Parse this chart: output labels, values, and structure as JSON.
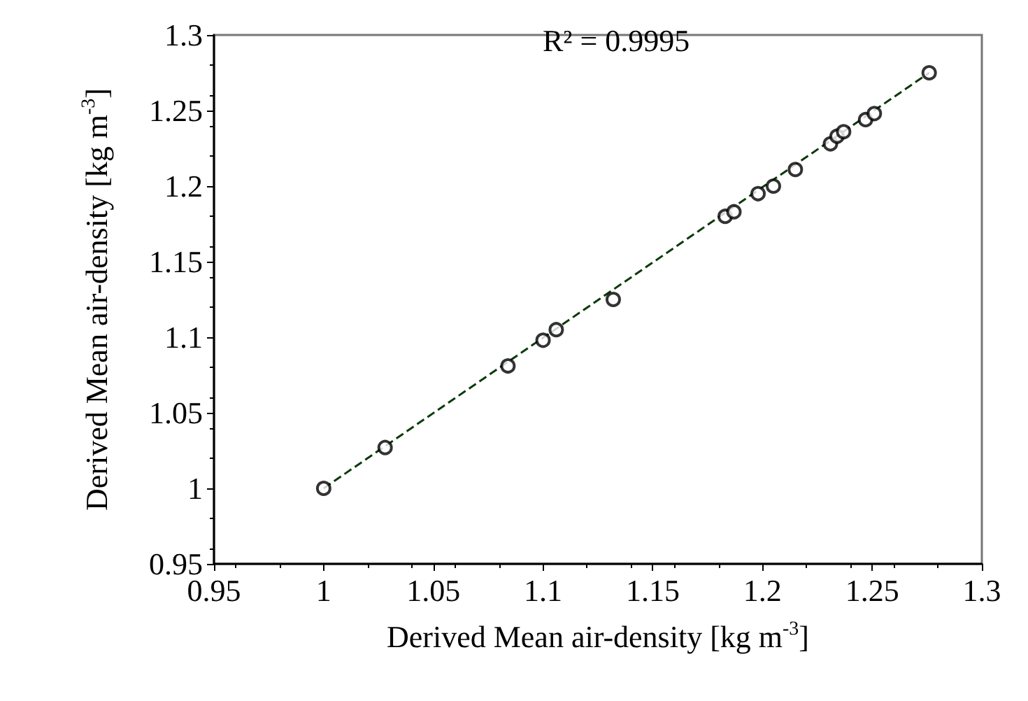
{
  "chart_data": {
    "type": "scatter",
    "xlabel": "Derived Mean air-density [kg m$^{-3}$]",
    "ylabel": "Derived Mean air-density [kg m$^{-3}$]",
    "annotations": [
      "R² = 0.9995"
    ],
    "xlim": [
      0.95,
      1.3
    ],
    "xticks": [
      0.95,
      1,
      1.05,
      1.1,
      1.15,
      1.2,
      1.25,
      1.3
    ],
    "ylim": [
      0.95,
      1.3
    ],
    "yticks": [
      0.95,
      1,
      1.05,
      1.1,
      1.15,
      1.2,
      1.25,
      1.3
    ],
    "grid": false,
    "marker": "circle",
    "series": [
      {
        "color": "#000000",
        "x": [
          1,
          1.028,
          1.084,
          1.1,
          1.106,
          1.132,
          1.183,
          1.187,
          1.198,
          1.205,
          1.215,
          1.231,
          1.234,
          1.237,
          1.247,
          1.251,
          1.276
        ],
        "values": [
          1,
          1.027,
          1.081,
          1.098,
          1.105,
          1.125,
          1.18,
          1.183,
          1.195,
          1.2,
          1.211,
          1.228,
          1.233,
          1.236,
          1.244,
          1.248,
          1.275
        ]
      },
      {
        "type": "line",
        "color": "#0a3a0a",
        "line_style": "dashed",
        "marker": "none",
        "x": [
          1,
          1.276
        ],
        "values": [
          1,
          1.275
        ]
      }
    ]
  }
}
